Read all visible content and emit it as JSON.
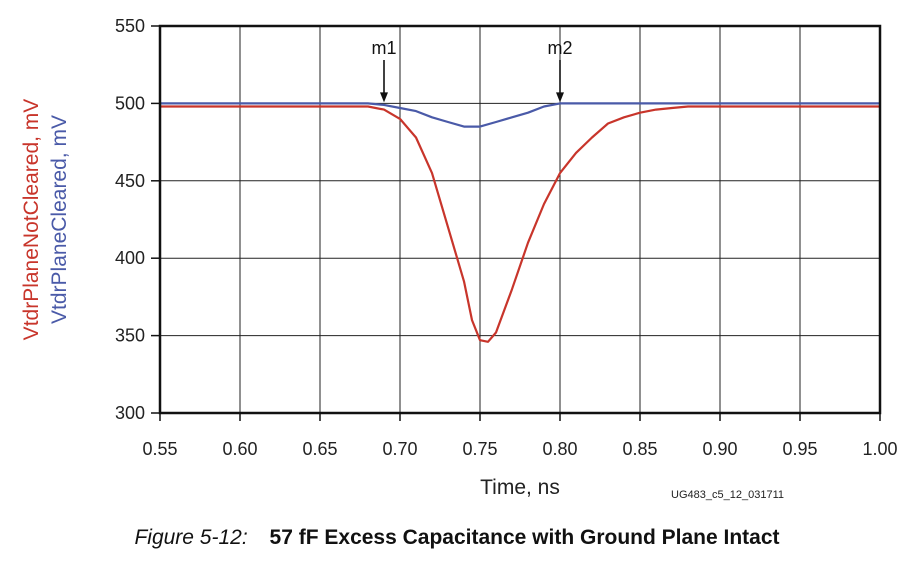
{
  "chart_data": {
    "type": "line",
    "xlabel": "Time, ns",
    "ylabels": [
      "VtdrPlaneNotCleared, mV",
      "VtdrPlaneCleared, mV"
    ],
    "xlim": [
      0.55,
      1.0
    ],
    "ylim": [
      300,
      550
    ],
    "x_ticks": [
      "0.55",
      "0.60",
      "0.65",
      "0.70",
      "0.75",
      "0.80",
      "0.85",
      "0.90",
      "0.95",
      "1.00"
    ],
    "y_ticks": [
      "300",
      "350",
      "400",
      "450",
      "500",
      "550"
    ],
    "grid": true,
    "series": [
      {
        "name": "VtdrPlaneNotCleared, mV",
        "color": "#c8352b",
        "x": [
          0.55,
          0.6,
          0.65,
          0.68,
          0.69,
          0.7,
          0.71,
          0.72,
          0.73,
          0.74,
          0.745,
          0.75,
          0.755,
          0.76,
          0.77,
          0.78,
          0.79,
          0.8,
          0.81,
          0.82,
          0.83,
          0.84,
          0.85,
          0.86,
          0.87,
          0.88,
          0.9,
          1.0
        ],
        "y": [
          498,
          498,
          498,
          498,
          496,
          490,
          478,
          455,
          420,
          385,
          360,
          347,
          346,
          352,
          380,
          410,
          435,
          455,
          468,
          478,
          487,
          491,
          494,
          496,
          497,
          498,
          498,
          498
        ]
      },
      {
        "name": "VtdrPlaneCleared, mV",
        "color": "#4a5aa8",
        "x": [
          0.55,
          0.6,
          0.65,
          0.68,
          0.69,
          0.7,
          0.71,
          0.72,
          0.73,
          0.74,
          0.75,
          0.76,
          0.77,
          0.78,
          0.79,
          0.8,
          0.85,
          0.9,
          1.0
        ],
        "y": [
          500,
          500,
          500,
          500,
          499,
          497,
          495,
          491,
          488,
          485,
          485,
          488,
          491,
          494,
          498,
          500,
          500,
          500,
          500
        ]
      }
    ],
    "markers": [
      {
        "label": "m1",
        "x": 0.69
      },
      {
        "label": "m2",
        "x": 0.8
      }
    ]
  },
  "figure_id": "UG483_c5_12_031711",
  "caption": {
    "number": "Figure 5-12:",
    "title": "57 fF Excess Capacitance with Ground Plane Intact"
  }
}
